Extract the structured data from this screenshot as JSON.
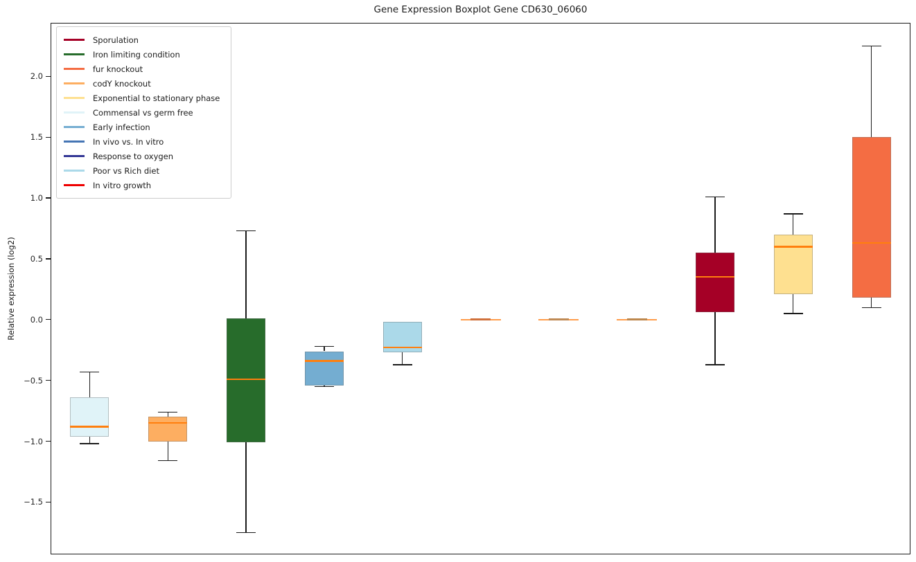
{
  "figure": {
    "title": "Gene Expression Boxplot Gene CD630_06060",
    "y_axis_label": "Relative expression (log2)"
  },
  "legend": {
    "items": [
      {
        "label": "Sporulation",
        "color": "#A50026"
      },
      {
        "label": "Iron limiting condition",
        "color": "#276C2B"
      },
      {
        "label": "fur knockout",
        "color": "#F46D43"
      },
      {
        "label": "codY knockout",
        "color": "#FDAE61"
      },
      {
        "label": "Exponential to stationary phase",
        "color": "#FEE090"
      },
      {
        "label": "Commensal vs germ free",
        "color": "#E0F3F8"
      },
      {
        "label": "Early infection",
        "color": "#74ADD1"
      },
      {
        "label": "In vivo vs. In vitro",
        "color": "#4575B4"
      },
      {
        "label": "Response to oxygen",
        "color": "#313695"
      },
      {
        "label": "Poor vs Rich diet",
        "color": "#ABD9E9"
      },
      {
        "label": "In vitro growth",
        "color": "#EE0000"
      }
    ]
  },
  "chart_data": {
    "type": "boxplot",
    "title": "Gene Expression Boxplot Gene CD630_06060",
    "xlabel": "",
    "ylabel": "Relative expression (log2)",
    "grid": false,
    "legend_position": "upper left",
    "median_color": "#FF7F0E",
    "whisker_color": "#1A1A1A",
    "flat_side_color": "#FF9C4A",
    "y_axis": {
      "min": -1.93,
      "max": 2.44,
      "ticks": [
        {
          "label": "2.0",
          "value": 2.0
        },
        {
          "label": "1.5",
          "value": 1.5
        },
        {
          "label": "1.0",
          "value": 1.0
        },
        {
          "label": "0.5",
          "value": 0.5
        },
        {
          "label": "0.0",
          "value": 0.0
        },
        {
          "label": "−0.5",
          "value": -0.5
        },
        {
          "label": "−1.0",
          "value": -1.0
        },
        {
          "label": "−1.5",
          "value": -1.5
        }
      ]
    },
    "x_axis": {
      "tick_labels_visible": false
    },
    "series": [
      {
        "name": "Commensal vs germ free",
        "color": "#E0F3F8",
        "whisker_low": -1.02,
        "q1": -0.96,
        "median": -0.88,
        "q3": -0.64,
        "whisker_high": -0.43,
        "flat": false
      },
      {
        "name": "codY knockout",
        "color": "#FDAE61",
        "whisker_low": -1.16,
        "q1": -1.0,
        "median": -0.85,
        "q3": -0.8,
        "whisker_high": -0.76,
        "flat": false
      },
      {
        "name": "Iron limiting condition",
        "color": "#276C2B",
        "whisker_low": -1.75,
        "q1": -1.01,
        "median": -0.49,
        "q3": 0.01,
        "whisker_high": 0.73,
        "flat": false
      },
      {
        "name": "Early infection",
        "color": "#74ADD1",
        "whisker_low": -0.55,
        "q1": -0.54,
        "median": -0.34,
        "q3": -0.26,
        "whisker_high": -0.22,
        "flat": false
      },
      {
        "name": "Poor vs Rich diet",
        "color": "#ABD9E9",
        "whisker_low": -0.37,
        "q1": -0.27,
        "median": -0.23,
        "q3": -0.02,
        "whisker_high": -0.02,
        "flat": false
      },
      {
        "name": "In vitro growth",
        "color": "#EE0000",
        "whisker_low": 0.0,
        "q1": 0.0,
        "median": 0.0,
        "q3": 0.0,
        "whisker_high": 0.0,
        "flat": true,
        "flat_mid_color": "#D0713C"
      },
      {
        "name": "In vivo vs. In vitro",
        "color": "#4575B4",
        "whisker_low": 0.0,
        "q1": 0.0,
        "median": 0.0,
        "q3": 0.0,
        "whisker_high": 0.0,
        "flat": true,
        "flat_mid_color": "#BF8A55"
      },
      {
        "name": "Response to oxygen",
        "color": "#313695",
        "whisker_low": 0.0,
        "q1": 0.0,
        "median": 0.0,
        "q3": 0.0,
        "whisker_high": 0.0,
        "flat": true,
        "flat_mid_color": "#BD884E"
      },
      {
        "name": "Sporulation",
        "color": "#A50026",
        "whisker_low": -0.37,
        "q1": 0.06,
        "median": 0.35,
        "q3": 0.55,
        "whisker_high": 1.01,
        "flat": false
      },
      {
        "name": "Exponential to stationary phase",
        "color": "#FEE090",
        "whisker_low": 0.05,
        "q1": 0.21,
        "median": 0.6,
        "q3": 0.7,
        "whisker_high": 0.87,
        "flat": false
      },
      {
        "name": "fur knockout",
        "color": "#F46D43",
        "whisker_low": 0.1,
        "q1": 0.18,
        "median": 0.63,
        "q3": 1.5,
        "whisker_high": 2.25,
        "flat": false
      }
    ]
  }
}
